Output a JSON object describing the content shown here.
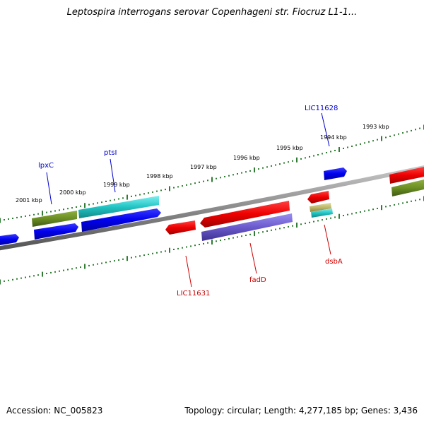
{
  "title": "Leptospira interrogans serovar Copenhageni str. Fiocruz L1-1...",
  "footer": {
    "accession": "Accession: NC_005823",
    "summary": "Topology: circular; Length: 4,277,185 bp; Genes: 3,436"
  },
  "ruler_labels": [
    "2001 kbp",
    "2000 kbp",
    "1999 kbp",
    "1998 kbp",
    "1997 kbp",
    "1996 kbp",
    "1995 kbp",
    "1994 kbp",
    "1993 kbp"
  ],
  "gene_labels": {
    "top": [
      "lpxC",
      "ptsI",
      "LIC11628"
    ],
    "bottom": [
      "LIC11631",
      "fadD",
      "dsbA"
    ]
  },
  "colors": {
    "plus_label": "#0000cc",
    "minus_label": "#cc0000",
    "blue_gene": "#1010e8",
    "red_gene": "#ee1111",
    "olive_gene": "#6b8e23",
    "cyan_gene": "#22c4c4",
    "purple_gene": "#6a5acd",
    "tan_gene": "#bdb76b",
    "ruler": "#2e7d32",
    "backbone": "#888888"
  }
}
